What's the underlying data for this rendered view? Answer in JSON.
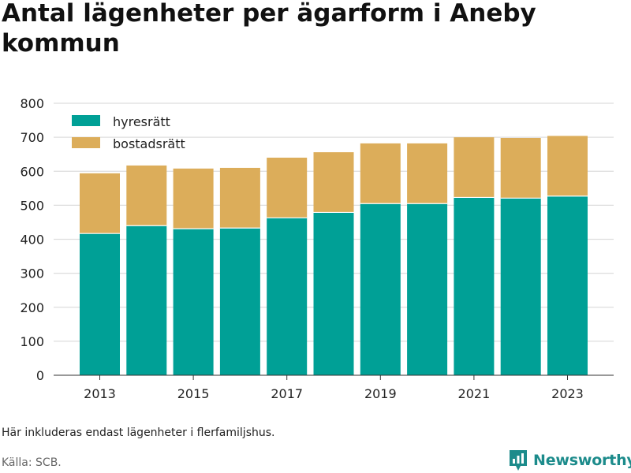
{
  "title": "Antal lägenheter per ägarform i Aneby kommun",
  "note": "Här inkluderas endast lägenheter i flerfamiljshus.",
  "source": "Källa: SCB.",
  "brand": "Newsworthy",
  "colors": {
    "hyresratt": "#00a096",
    "bostadsratt": "#dcad5a",
    "grid": "#dddddd",
    "brand": "#1c8b8b"
  },
  "chart_data": {
    "type": "bar",
    "stacked": true,
    "title": "Antal lägenheter per ägarform i Aneby kommun",
    "xlabel": "",
    "ylabel": "",
    "categories": [
      2013,
      2014,
      2015,
      2016,
      2017,
      2018,
      2019,
      2020,
      2021,
      2022,
      2023
    ],
    "x_tick_labels": [
      "2013",
      "2015",
      "2017",
      "2019",
      "2021",
      "2023"
    ],
    "y_tick_labels": [
      "0",
      "100",
      "200",
      "300",
      "400",
      "500",
      "600",
      "700",
      "800"
    ],
    "ylim": [
      0,
      800
    ],
    "grid": true,
    "legend_position": "top-left",
    "series": [
      {
        "name": "hyresrätt",
        "values": [
          417,
          440,
          431,
          433,
          463,
          479,
          505,
          505,
          523,
          521,
          527
        ]
      },
      {
        "name": "bostadsrätt",
        "values": [
          177,
          177,
          177,
          177,
          177,
          177,
          177,
          177,
          177,
          177,
          177
        ]
      }
    ]
  }
}
